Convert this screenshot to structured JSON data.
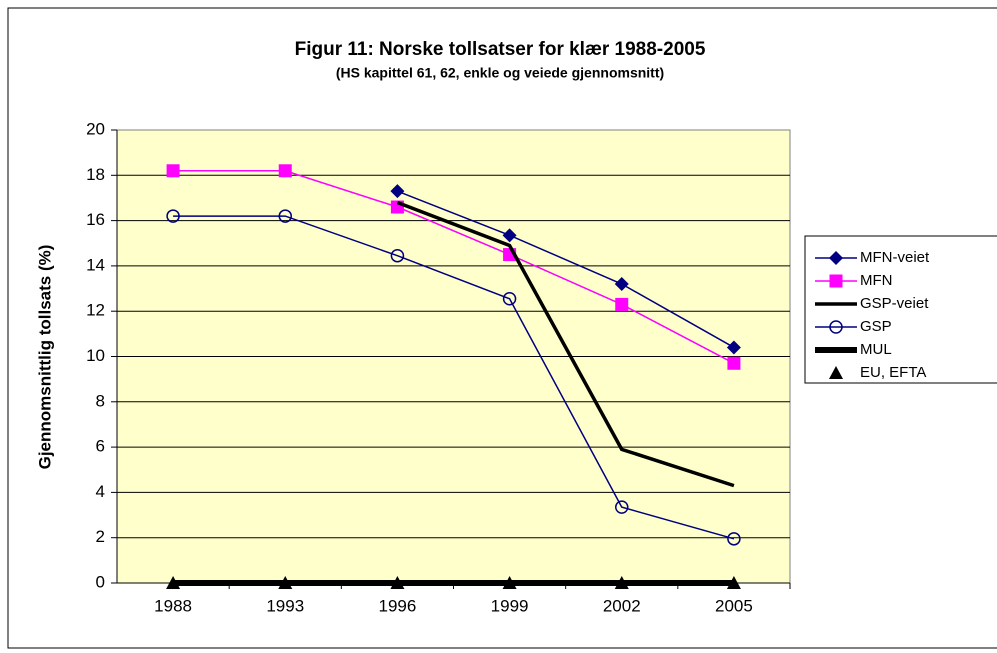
{
  "chart_data": {
    "type": "line",
    "title": "Figur 11: Norske tollsatser for klær 1988-2005",
    "subtitle": "(HS kapittel 61, 62, enkle og veiede gjennomsnitt)",
    "y_label": "Gjennomsnittlig tollsats (%)",
    "categories": [
      "1988",
      "1993",
      "1996",
      "1999",
      "2002",
      "2005"
    ],
    "ylim": [
      0,
      20
    ],
    "yticks": [
      0,
      2,
      4,
      6,
      8,
      10,
      12,
      14,
      16,
      18,
      20
    ],
    "grid": true,
    "legend": "right",
    "series": [
      {
        "name": "MFN-veiet",
        "color": "#000080",
        "marker": "diamond",
        "line_width": 1.5,
        "values": [
          null,
          null,
          17.3,
          15.35,
          13.2,
          10.4
        ]
      },
      {
        "name": "MFN",
        "color": "#ff00ff",
        "marker": "square",
        "line_width": 1.5,
        "values": [
          18.2,
          18.2,
          16.6,
          14.5,
          12.3,
          9.7
        ]
      },
      {
        "name": "GSP-veiet",
        "color": "#000000",
        "marker": "none",
        "line_width": 3.5,
        "values": [
          null,
          null,
          16.8,
          14.9,
          5.9,
          4.3
        ]
      },
      {
        "name": "GSP",
        "color": "#000080",
        "marker": "circle-open",
        "line_width": 1.5,
        "values": [
          16.2,
          16.2,
          14.45,
          12.55,
          3.35,
          1.95
        ]
      },
      {
        "name": "MUL",
        "color": "#000000",
        "marker": "none",
        "line_width": 6,
        "values": [
          0,
          0,
          0,
          0,
          0,
          0
        ]
      },
      {
        "name": "EU, EFTA",
        "color": "#000000",
        "marker": "triangle",
        "line_width": 0,
        "values": [
          0,
          0,
          0,
          0,
          0,
          0
        ]
      }
    ]
  }
}
